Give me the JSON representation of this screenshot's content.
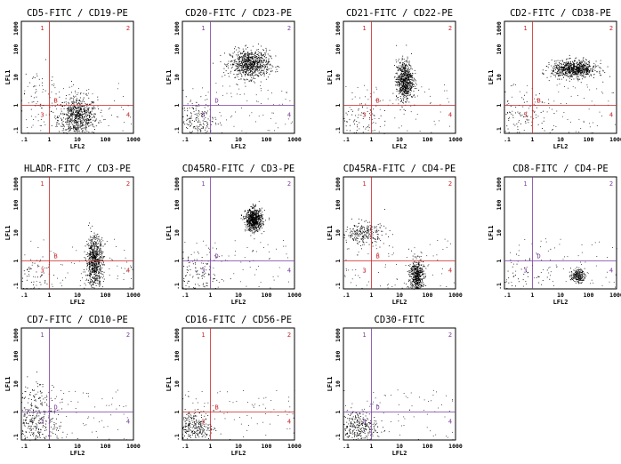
{
  "colors": {
    "red": "#cc2222",
    "purple": "#7a3aa0",
    "dots": "#000000",
    "frame": "#000000"
  },
  "axes": {
    "x_label": "LFL2",
    "y_label": "LFL1",
    "x_ticks": [
      ".1",
      "1",
      "10",
      "100",
      "1000"
    ],
    "y_ticks": [
      ".1",
      "1",
      "10",
      "100",
      "1000"
    ],
    "scale": "log"
  },
  "quadrant_labels": [
    "1",
    "2",
    "3",
    "4"
  ],
  "chart_data": [
    {
      "type": "scatter",
      "title": "CD5-FITC / CD19-PE",
      "gate": "B",
      "line_color": "red",
      "gate_x": 1,
      "gate_y": 1,
      "clusters": [
        {
          "x": 10,
          "y": 0.4,
          "sx": 0.35,
          "sy": 0.35,
          "n": 700
        },
        {
          "x": 0.3,
          "y": 3,
          "sx": 0.6,
          "sy": 0.5,
          "n": 60
        }
      ]
    },
    {
      "type": "scatter",
      "title": "CD20-FITC / CD23-PE",
      "gate": "D",
      "line_color": "purple",
      "gate_x": 1,
      "gate_y": 1,
      "clusters": [
        {
          "x": 25,
          "y": 30,
          "sx": 0.35,
          "sy": 0.25,
          "n": 800
        },
        {
          "x": 0.3,
          "y": 0.3,
          "sx": 0.4,
          "sy": 0.4,
          "n": 200
        }
      ]
    },
    {
      "type": "scatter",
      "title": "CD21-FITC / CD22-PE",
      "gate": "B",
      "line_color": "red",
      "gate_x": 1,
      "gate_y": 1,
      "clusters": [
        {
          "x": 15,
          "y": 8,
          "sx": 0.15,
          "sy": 0.35,
          "n": 700
        },
        {
          "x": 0.3,
          "y": 0.3,
          "sx": 0.4,
          "sy": 0.4,
          "n": 80
        }
      ]
    },
    {
      "type": "scatter",
      "title": "CD2-FITC / CD38-PE",
      "gate": "B",
      "line_color": "red",
      "gate_x": 1,
      "gate_y": 1,
      "clusters": [
        {
          "x": 30,
          "y": 20,
          "sx": 0.4,
          "sy": 0.15,
          "n": 800
        },
        {
          "x": 0.3,
          "y": 0.3,
          "sx": 0.5,
          "sy": 0.5,
          "n": 120
        }
      ]
    },
    {
      "type": "scatter",
      "title": "HLADR-FITC / CD3-PE",
      "gate": "B",
      "line_color": "red",
      "gate_x": 1,
      "gate_y": 1,
      "clusters": [
        {
          "x": 40,
          "y": 1,
          "sx": 0.15,
          "sy": 0.45,
          "n": 700
        },
        {
          "x": 0.3,
          "y": 0.3,
          "sx": 0.4,
          "sy": 0.4,
          "n": 60
        }
      ]
    },
    {
      "type": "scatter",
      "title": "CD45RO-FITC / CD3-PE",
      "gate": "D",
      "line_color": "purple",
      "gate_x": 1,
      "gate_y": 1,
      "clusters": [
        {
          "x": 35,
          "y": 30,
          "sx": 0.15,
          "sy": 0.2,
          "n": 700
        },
        {
          "x": 0.3,
          "y": 0.3,
          "sx": 0.5,
          "sy": 0.4,
          "n": 120
        }
      ]
    },
    {
      "type": "scatter",
      "title": "CD45RA-FITC / CD4-PE",
      "gate": "B",
      "line_color": "red",
      "gate_x": 1,
      "gate_y": 1,
      "clusters": [
        {
          "x": 40,
          "y": 0.3,
          "sx": 0.12,
          "sy": 0.3,
          "n": 500
        },
        {
          "x": 0.5,
          "y": 10,
          "sx": 0.4,
          "sy": 0.2,
          "n": 250
        }
      ]
    },
    {
      "type": "scatter",
      "title": "CD8-FITC / CD4-PE",
      "gate": "D",
      "line_color": "purple",
      "gate_x": 1,
      "gate_y": 1,
      "clusters": [
        {
          "x": 40,
          "y": 0.3,
          "sx": 0.12,
          "sy": 0.12,
          "n": 200
        },
        {
          "x": 0.3,
          "y": 0.3,
          "sx": 0.6,
          "sy": 0.4,
          "n": 60
        }
      ]
    },
    {
      "type": "scatter",
      "title": "CD7-FITC / CD10-PE",
      "gate": "D",
      "line_color": "purple",
      "gate_x": 1,
      "gate_y": 1,
      "clusters": [
        {
          "x": 0.3,
          "y": 0.4,
          "sx": 0.5,
          "sy": 0.4,
          "n": 300
        },
        {
          "x": 0.2,
          "y": 3,
          "sx": 0.4,
          "sy": 0.4,
          "n": 80
        }
      ]
    },
    {
      "type": "scatter",
      "title": "CD16-FITC / CD56-PE",
      "gate": "B",
      "line_color": "red",
      "gate_x": 1,
      "gate_y": 1,
      "clusters": [
        {
          "x": 0.25,
          "y": 0.3,
          "sx": 0.35,
          "sy": 0.3,
          "n": 300
        }
      ]
    },
    {
      "type": "scatter",
      "title": "CD30-FITC",
      "gate": "D",
      "line_color": "purple",
      "gate_x": 1,
      "gate_y": 1,
      "clusters": [
        {
          "x": 0.3,
          "y": 0.3,
          "sx": 0.35,
          "sy": 0.3,
          "n": 300
        }
      ]
    }
  ]
}
